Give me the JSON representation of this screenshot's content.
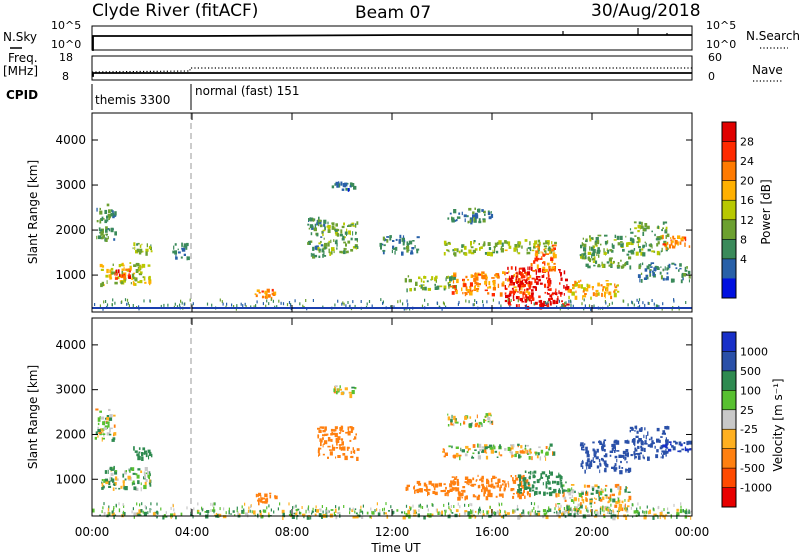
{
  "header": {
    "station": "Clyde River (fitACF)",
    "beam": "Beam 07",
    "date": "30/Aug/2018"
  },
  "status_panel": {
    "nsky_label": "N.Sky",
    "nsky_ticks": [
      "10^5",
      "10^0"
    ],
    "nsearch_label": "N.Search",
    "nsearch_ticks": [
      "10^5",
      "10^0"
    ],
    "freq_label_1": "Freq.",
    "freq_label_2": "[MHz]",
    "freq_ticks": [
      "18",
      "8"
    ],
    "nave_label": "Nave",
    "nave_ticks": [
      "60",
      "0"
    ],
    "cpid_label": "CPID",
    "cpid_segments": [
      {
        "label": "themis 3300",
        "start_hour": 0
      },
      {
        "label": "normal (fast) 151",
        "start_hour": 4
      }
    ]
  },
  "chart_data": [
    {
      "type": "heatmap",
      "name": "power",
      "ylabel": "Slant Range [km]",
      "xlabel": "Time UT",
      "x_range_hours": [
        0,
        24
      ],
      "y_range_km": [
        180,
        4600
      ],
      "y_ticks": [
        "4000",
        "3000",
        "2000",
        "1000"
      ],
      "x_ticks": [
        "00:00",
        "04:00",
        "08:00",
        "12:00",
        "16:00",
        "20:00",
        "00:00"
      ],
      "colorbar_label": "Power [dB]",
      "colorbar_ticks": [
        "28",
        "24",
        "20",
        "16",
        "12",
        "8",
        "4"
      ],
      "colorbar_colors": [
        "#e00000",
        "#ff2a00",
        "#ff7a00",
        "#ffb000",
        "#b8c800",
        "#6ca030",
        "#3a8a5a",
        "#2860a8",
        "#0010e0"
      ],
      "regions": [
        {
          "t0": 0.1,
          "t1": 0.9,
          "r0": 1800,
          "r1": 2600,
          "level": 10
        },
        {
          "t0": 0.3,
          "t1": 2.3,
          "r0": 800,
          "r1": 1300,
          "level": 16
        },
        {
          "t0": 0.9,
          "t1": 1.5,
          "r0": 950,
          "r1": 1150,
          "level": 26
        },
        {
          "t0": 1.6,
          "t1": 2.4,
          "r0": 1500,
          "r1": 1750,
          "level": 14
        },
        {
          "t0": 3.2,
          "t1": 3.8,
          "r0": 1400,
          "r1": 1750,
          "level": 8
        },
        {
          "t0": 6.5,
          "t1": 7.3,
          "r0": 500,
          "r1": 700,
          "level": 22
        },
        {
          "t0": 8.6,
          "t1": 9.3,
          "r0": 1400,
          "r1": 2300,
          "level": 8
        },
        {
          "t0": 9.0,
          "t1": 10.6,
          "r0": 1500,
          "r1": 2200,
          "level": 12
        },
        {
          "t0": 9.5,
          "t1": 10.5,
          "r0": 2900,
          "r1": 3100,
          "level": 6
        },
        {
          "t0": 11.5,
          "t1": 13.0,
          "r0": 1500,
          "r1": 1900,
          "level": 8
        },
        {
          "t0": 12.5,
          "t1": 14.5,
          "r0": 700,
          "r1": 1000,
          "level": 12
        },
        {
          "t0": 14.2,
          "t1": 16.0,
          "r0": 2200,
          "r1": 2500,
          "level": 8
        },
        {
          "t0": 14.0,
          "t1": 18.5,
          "r0": 1500,
          "r1": 1800,
          "level": 14
        },
        {
          "t0": 14.3,
          "t1": 17.5,
          "r0": 600,
          "r1": 1100,
          "level": 22
        },
        {
          "t0": 16.5,
          "t1": 19.0,
          "r0": 300,
          "r1": 1200,
          "level": 30
        },
        {
          "t0": 17.5,
          "t1": 18.5,
          "r0": 1100,
          "r1": 1700,
          "level": 24
        },
        {
          "t0": 19.0,
          "t1": 21.0,
          "r0": 500,
          "r1": 900,
          "level": 20
        },
        {
          "t0": 19.5,
          "t1": 21.5,
          "r0": 1200,
          "r1": 1900,
          "level": 12
        },
        {
          "t0": 21.5,
          "t1": 23.0,
          "r0": 1500,
          "r1": 2200,
          "level": 12
        },
        {
          "t0": 22.8,
          "t1": 23.9,
          "r0": 1600,
          "r1": 1900,
          "level": 22
        },
        {
          "t0": 21.8,
          "t1": 23.9,
          "r0": 900,
          "r1": 1300,
          "level": 8
        }
      ]
    },
    {
      "type": "heatmap",
      "name": "velocity",
      "ylabel": "Slant Range [km]",
      "xlabel": "Time UT",
      "x_range_hours": [
        0,
        24
      ],
      "y_range_km": [
        180,
        4600
      ],
      "y_ticks": [
        "4000",
        "3000",
        "2000",
        "1000"
      ],
      "x_ticks": [
        "00:00",
        "04:00",
        "08:00",
        "12:00",
        "16:00",
        "20:00",
        "00:00"
      ],
      "colorbar_label": "Velocity [m s⁻¹]",
      "colorbar_ticks": [
        "1000",
        "500",
        "100",
        "25",
        "-25",
        "-100",
        "-500",
        "-1000"
      ],
      "colorbar_colors": [
        "#1830c8",
        "#2a50a8",
        "#2e8a50",
        "#58c030",
        "#c8c8c8",
        "#ffb020",
        "#ff8010",
        "#ff4a00",
        "#e80000"
      ],
      "regions": [
        {
          "t0": 0.1,
          "t1": 0.9,
          "r0": 1900,
          "r1": 2600,
          "vel": 0
        },
        {
          "t0": 0.3,
          "t1": 2.3,
          "r0": 800,
          "r1": 1300,
          "vel": 80
        },
        {
          "t0": 1.6,
          "t1": 2.4,
          "r0": 1500,
          "r1": 1750,
          "vel": 300
        },
        {
          "t0": 6.5,
          "t1": 7.3,
          "r0": 500,
          "r1": 700,
          "vel": -300
        },
        {
          "t0": 9.0,
          "t1": 10.6,
          "r0": 1500,
          "r1": 2200,
          "vel": -300
        },
        {
          "t0": 9.5,
          "t1": 10.5,
          "r0": 2900,
          "r1": 3100,
          "vel": 0
        },
        {
          "t0": 12.5,
          "t1": 14.5,
          "r0": 700,
          "r1": 1000,
          "vel": -300
        },
        {
          "t0": 14.2,
          "t1": 16.0,
          "r0": 2200,
          "r1": 2500,
          "vel": 0
        },
        {
          "t0": 14.0,
          "t1": 18.5,
          "r0": 1500,
          "r1": 1800,
          "vel": 0
        },
        {
          "t0": 14.3,
          "t1": 17.5,
          "r0": 600,
          "r1": 1100,
          "vel": -300
        },
        {
          "t0": 17.0,
          "t1": 19.0,
          "r0": 700,
          "r1": 1200,
          "vel": 300
        },
        {
          "t0": 18.5,
          "t1": 21.5,
          "r0": 300,
          "r1": 900,
          "vel": 0
        },
        {
          "t0": 19.5,
          "t1": 21.5,
          "r0": 1200,
          "r1": 1900,
          "vel": 700
        },
        {
          "t0": 21.5,
          "t1": 23.0,
          "r0": 1500,
          "r1": 2200,
          "vel": 700
        },
        {
          "t0": 22.8,
          "t1": 23.9,
          "r0": 1600,
          "r1": 1900,
          "vel": 1000
        },
        {
          "t0": 0.0,
          "t1": 24.0,
          "r0": 180,
          "r1": 350,
          "vel": 60
        }
      ]
    }
  ]
}
